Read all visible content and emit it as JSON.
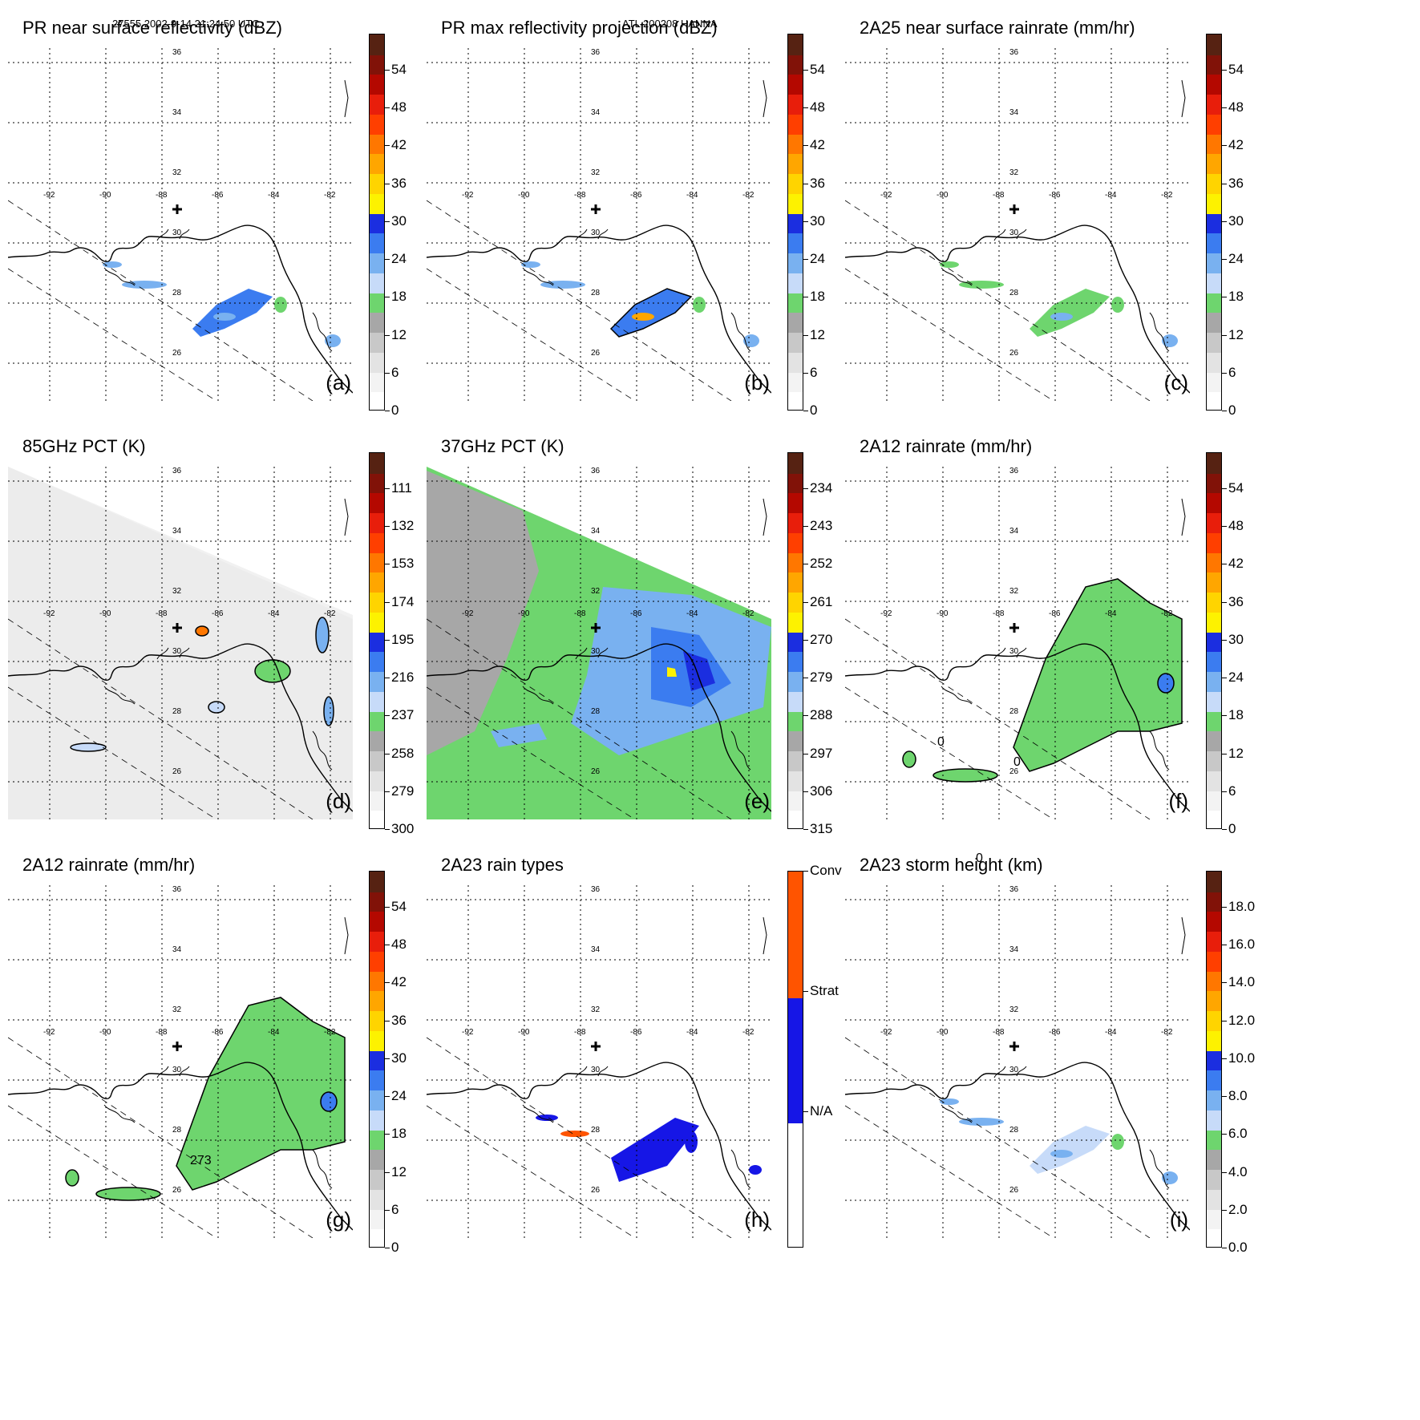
{
  "header": {
    "left": "27555 2002-9-14 21:24:50 UTC",
    "center": "ATL 200208 HANNA"
  },
  "lat_labels": [
    "36",
    "34",
    "32",
    "30",
    "28",
    "26"
  ],
  "lon_labels": [
    "-92",
    "-90",
    "-88",
    "-86",
    "-84",
    "-82"
  ],
  "palettes": {
    "rain": [
      "#ffffff",
      "#f3f3f3",
      "#e3e3e3",
      "#c8c8c8",
      "#a7a7a7",
      "#6ed56e",
      "#c7dbf9",
      "#79b1f0",
      "#3b7cf0",
      "#1b2ee0",
      "#fdf200",
      "#ffd400",
      "#ffa600",
      "#ff7700",
      "#ff3f00",
      "#e81e0b",
      "#b40800",
      "#811208",
      "#562212"
    ],
    "pct": [
      "#ffffff",
      "#f3f3f3",
      "#e3e3e3",
      "#c8c8c8",
      "#a7a7a7",
      "#6ed56e",
      "#c7dbf9",
      "#79b1f0",
      "#3b7cf0",
      "#1b2ee0",
      "#fdf200",
      "#ffd400",
      "#ffa600",
      "#ff7700",
      "#ff3f00",
      "#e81e0b",
      "#b40800",
      "#811208",
      "#562212"
    ],
    "type": [
      "#ffffff",
      "#1616e6",
      "#ff5400"
    ]
  },
  "panels": [
    {
      "title": "PR near surface reflectivity (dBZ)",
      "label": "(a)",
      "ticks": [
        "54",
        "48",
        "42",
        "36",
        "30",
        "24",
        "18",
        "12",
        "6",
        "0"
      ],
      "palette": "rain"
    },
    {
      "title": "PR max reflectivity projection (dBZ)",
      "label": "(b)",
      "ticks": [
        "54",
        "48",
        "42",
        "36",
        "30",
        "24",
        "18",
        "12",
        "6",
        "0"
      ],
      "palette": "rain"
    },
    {
      "title": "2A25 near surface rainrate (mm/hr)",
      "label": "(c)",
      "ticks": [
        "54",
        "48",
        "42",
        "36",
        "30",
        "24",
        "18",
        "12",
        "6",
        "0"
      ],
      "palette": "rain"
    },
    {
      "title": "85GHz PCT (K)",
      "label": "(d)",
      "ticks": [
        "111",
        "132",
        "153",
        "174",
        "195",
        "216",
        "237",
        "258",
        "279",
        "300"
      ],
      "palette": "pct"
    },
    {
      "title": "37GHz PCT (K)",
      "label": "(e)",
      "ticks": [
        "234",
        "243",
        "252",
        "261",
        "270",
        "279",
        "288",
        "297",
        "306",
        "315"
      ],
      "palette": "pct"
    },
    {
      "title": "2A12 rainrate (mm/hr)",
      "label": "(f)",
      "ticks": [
        "54",
        "48",
        "42",
        "36",
        "30",
        "24",
        "18",
        "12",
        "6",
        "0"
      ],
      "palette": "rain"
    },
    {
      "title": "2A12 rainrate (mm/hr)",
      "label": "(g)",
      "ticks": [
        "54",
        "48",
        "42",
        "36",
        "30",
        "24",
        "18",
        "12",
        "6",
        "0"
      ],
      "palette": "rain"
    },
    {
      "title": "2A23 rain types",
      "label": "(h)",
      "ticks": [
        "Conv",
        "Strat",
        "N/A"
      ],
      "palette": "type"
    },
    {
      "title": "2A23 storm height (km)",
      "label": "(i)",
      "ticks": [
        "18.0",
        "16.0",
        "14.0",
        "12.0",
        "10.0",
        "8.0",
        "6.0",
        "4.0",
        "2.0",
        "0.0"
      ],
      "palette": "rain"
    }
  ],
  "contour_labels": {
    "f": [
      "0",
      "0",
      "0"
    ],
    "g": [
      "273"
    ]
  }
}
